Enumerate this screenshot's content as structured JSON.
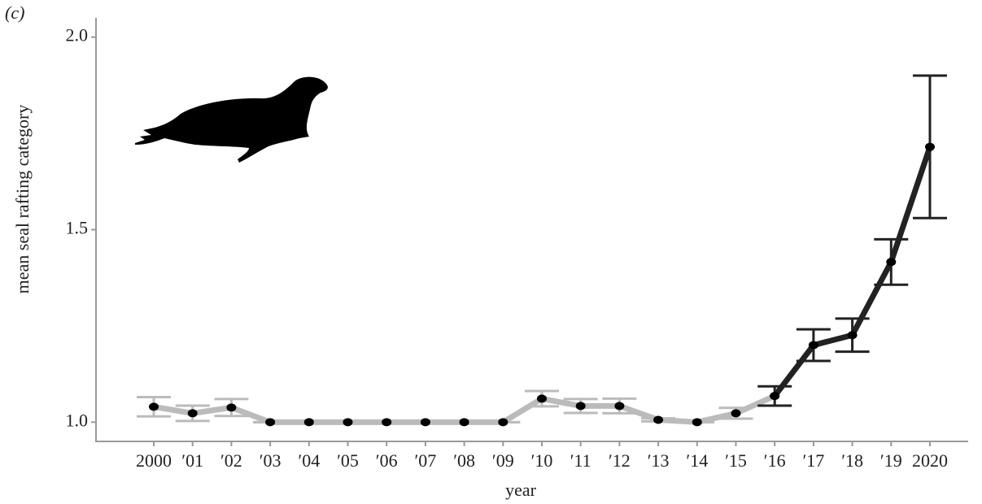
{
  "chart_data": {
    "type": "line",
    "panel_label": "(c)",
    "xlabel": "year",
    "ylabel": "mean seal rafting category",
    "categories": [
      "2000",
      "′01",
      "′02",
      "′03",
      "′04",
      "′05",
      "′06",
      "′07",
      "′08",
      "′09",
      "′10",
      "′11",
      "′12",
      "′13",
      "′14",
      "′15",
      "′16",
      "′17",
      "′18",
      "′19",
      "2020"
    ],
    "series": [
      {
        "color": "#bbbbbb",
        "values": [
          1.04,
          1.023,
          1.038,
          1.0,
          1.0,
          1.0,
          1.0,
          1.0,
          1.0,
          1.0,
          1.061,
          1.042,
          1.042,
          1.006,
          1.0,
          1.023,
          1.068,
          null,
          null,
          null,
          null
        ],
        "errors": [
          0.025,
          0.02,
          0.022,
          0,
          0,
          0,
          0,
          0,
          0,
          0,
          0.02,
          0.018,
          0.019,
          0.004,
          0,
          0.014,
          null,
          null,
          null,
          null,
          null
        ]
      },
      {
        "color": "#222222",
        "values": [
          null,
          null,
          null,
          null,
          null,
          null,
          null,
          null,
          null,
          null,
          null,
          null,
          null,
          null,
          null,
          null,
          1.068,
          1.2,
          1.226,
          1.416,
          1.715
        ],
        "errors": [
          null,
          null,
          null,
          null,
          null,
          null,
          null,
          null,
          null,
          null,
          null,
          null,
          null,
          null,
          null,
          null,
          0.025,
          0.041,
          0.043,
          0.059,
          0.185
        ]
      }
    ],
    "ylim": [
      0.95,
      2.05
    ],
    "yticks": [
      {
        "value": 1.0,
        "label": "1.0"
      },
      {
        "value": 1.5,
        "label": "1.5"
      },
      {
        "value": 2.0,
        "label": "2.0"
      }
    ]
  }
}
